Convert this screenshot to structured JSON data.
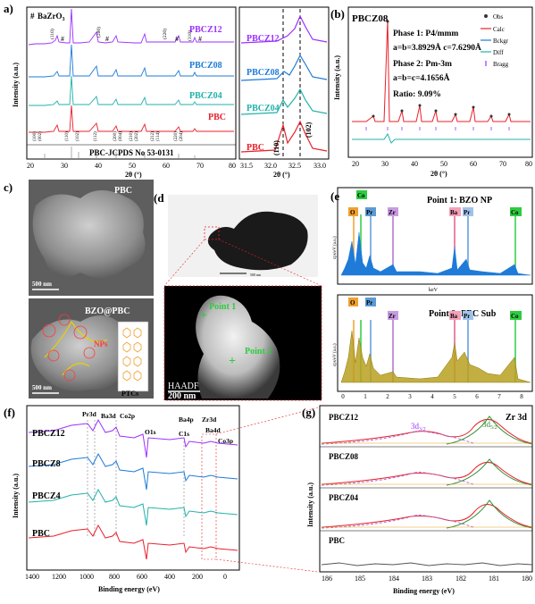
{
  "panels": {
    "a": {
      "label": "a)",
      "legend_marker": "#",
      "legend_text": "BaZrO",
      "legend_sub": "3",
      "ylabel": "Intensity (a.u.)",
      "xlabel": "2θ (°)",
      "xticks": [
        "20",
        "30",
        "40",
        "50",
        "60",
        "70",
        "80"
      ],
      "series": [
        "PBCZ12",
        "PBCZ08",
        "PBCZ04",
        "PBC"
      ],
      "series_colors": [
        "#9b30ff",
        "#1e7bd8",
        "#20b2aa",
        "#e8202a"
      ],
      "peaks_top": [
        "(110)",
        "(200)",
        "(220)",
        "(310)"
      ],
      "peaks_bottom": [
        "(100)",
        "(002)",
        "(110)",
        "(102)",
        "(112)",
        "(200)",
        "(004)",
        "(210)",
        "(202)",
        "(212)",
        "(114)",
        "(220)",
        "(204)"
      ],
      "ref_label": "PBC-JCPDS No 53-0131"
    },
    "a_zoom": {
      "xticks": [
        "31.5",
        "32.0",
        "32.5",
        "33.0"
      ],
      "xlabel": "2θ (°)",
      "peak_left": "(110)",
      "peak_right": "(102)"
    },
    "b": {
      "label": "(b)",
      "title": "PBCZ08",
      "phase1": "Phase 1:   P4/mmm",
      "phase1_params": "a=b=3.8929Å  c=7.6290Å",
      "phase2": "Phase 2:   Pm-3m",
      "phase2_params": "a=b=c=4.1656Å",
      "ratio": "Ratio: 9.09%",
      "legend": [
        "Obs",
        "Calc",
        "Bckgr",
        "Diff",
        "Bragg"
      ],
      "ylabel": "Intensity (a.u.)",
      "xlabel": "2θ (°)",
      "xticks": [
        "20",
        "30",
        "40",
        "50",
        "60",
        "70",
        "80"
      ]
    },
    "c": {
      "label": "c)",
      "top_label": "PBC",
      "bottom_label": "BZO@PBC",
      "scale_top": "500 nm",
      "scale_bottom": "500 nm",
      "nps_label": "NPs",
      "ptcs_label": "PTCs"
    },
    "d": {
      "label": "(d",
      "scale_top": "500 nm",
      "point1": "Point 1",
      "point2": "Point 2",
      "haadf": "HAADF",
      "scale": "200 nm"
    },
    "e": {
      "label": "(e",
      "top_title": "Point 1: BZO NP",
      "bottom_title": "Point 2: PBC Sub",
      "ylabel": "cps/eV (a.u.)",
      "xlabel": "keV",
      "xticks": [
        "0",
        "1",
        "2",
        "3",
        "4",
        "5",
        "6",
        "7",
        "8"
      ],
      "elements": [
        "O",
        "Co",
        "Pr",
        "Zr",
        "Ba",
        "Pr",
        "Co",
        "Zr"
      ]
    },
    "f": {
      "label": "(f)",
      "ylabel": "Intensity (a.u.)",
      "xlabel": "Binding energy (eV)",
      "xticks": [
        "1400",
        "1200",
        "1000",
        "800",
        "600",
        "400",
        "200",
        "0"
      ],
      "series": [
        "PBCZ12",
        "PBCZ8",
        "PBCZ4",
        "PBC"
      ],
      "series_colors": [
        "#9b30ff",
        "#1e7bd8",
        "#20b2aa",
        "#e8202a"
      ],
      "annotations": [
        "Pr3d",
        "Ba3d",
        "Co2p",
        "O1s",
        "Ba4p",
        "Zr3d",
        "C1s",
        "Ba4d",
        "Co3p"
      ]
    },
    "g": {
      "label": "(g)",
      "title": "Zr 3d",
      "peak_left": "3d",
      "peak_left_sub": "3/2",
      "peak_right": "3d",
      "peak_right_sub": "5/2",
      "ylabel": "Intensity (a.u.)",
      "xlabel": "Binding energy (eV)",
      "xticks": [
        "186",
        "185",
        "184",
        "183",
        "182",
        "181",
        "180"
      ],
      "series": [
        "PBCZ12",
        "PBCZ08",
        "PBCZ04",
        "PBC"
      ]
    }
  }
}
